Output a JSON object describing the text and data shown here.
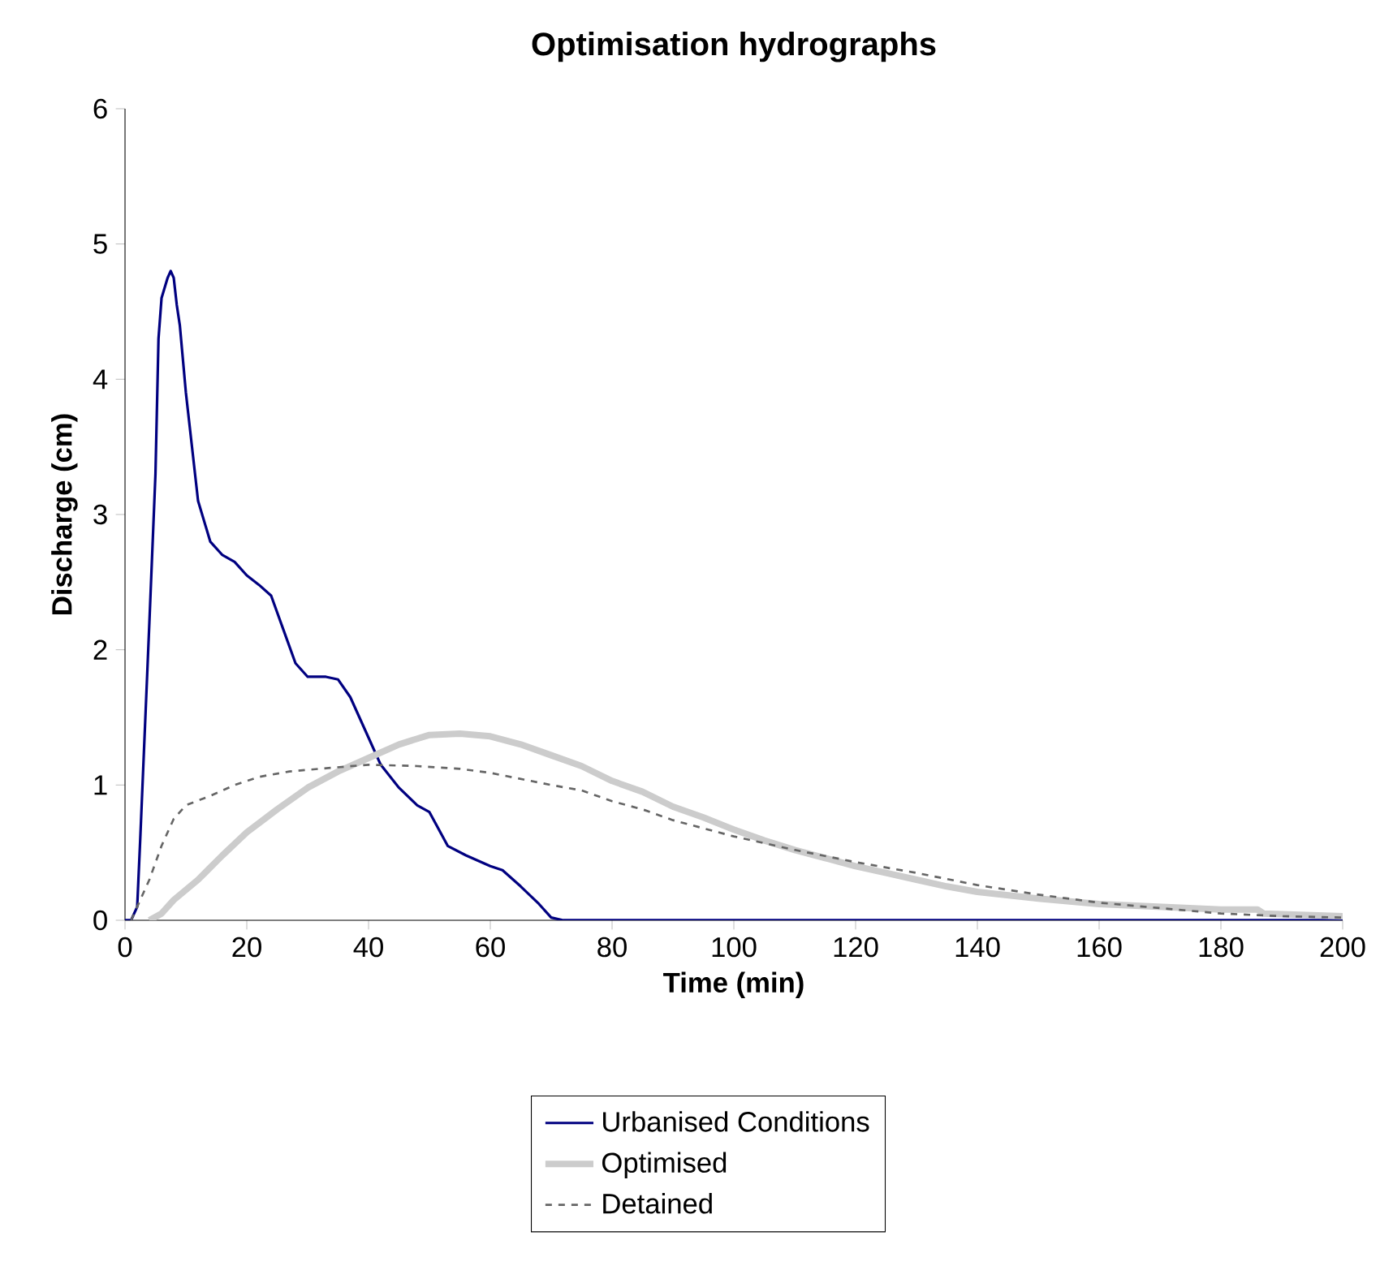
{
  "chart_data": {
    "type": "line",
    "title": "Optimisation hydrographs",
    "xlabel": "Time (min)",
    "ylabel": "Discharge (cm)",
    "xlim": [
      0,
      200
    ],
    "xticks": [
      0,
      20,
      40,
      60,
      80,
      100,
      120,
      140,
      160,
      180,
      200
    ],
    "ylim": [
      0,
      6
    ],
    "yticks": [
      0,
      1,
      2,
      3,
      4,
      5,
      6
    ],
    "grid": false,
    "legend": "bottom",
    "marker": "none",
    "series": [
      {
        "name": "Urbanised Conditions",
        "color": "#000080",
        "line_style": "solid",
        "x": [
          0,
          1,
          2,
          2.5,
          4,
          5,
          5.5,
          6,
          7,
          7.5,
          8,
          8.5,
          9,
          10,
          11,
          12,
          14,
          16,
          18,
          20,
          22,
          24,
          26,
          28,
          30,
          33,
          35,
          37,
          40,
          42,
          45,
          48,
          50,
          53,
          56,
          60,
          62,
          65,
          68,
          70,
          72,
          200
        ],
        "values": [
          0,
          0,
          0.1,
          0.6,
          2.2,
          3.3,
          4.3,
          4.6,
          4.75,
          4.8,
          4.75,
          4.55,
          4.4,
          3.9,
          3.5,
          3.1,
          2.8,
          2.7,
          2.65,
          2.55,
          2.48,
          2.4,
          2.15,
          1.9,
          1.8,
          1.8,
          1.78,
          1.65,
          1.35,
          1.15,
          0.98,
          0.85,
          0.8,
          0.55,
          0.48,
          0.4,
          0.37,
          0.25,
          0.12,
          0.02,
          0,
          0
        ]
      },
      {
        "name": "Optimised",
        "color": "#cccccc",
        "line_style": "solid",
        "x": [
          4,
          6,
          8,
          12,
          16,
          20,
          25,
          30,
          35,
          40,
          45,
          50,
          55,
          60,
          65,
          70,
          75,
          80,
          85,
          90,
          95,
          100,
          105,
          110,
          115,
          120,
          125,
          130,
          135,
          140,
          150,
          160,
          170,
          180,
          186,
          187,
          200
        ],
        "values": [
          0,
          0.05,
          0.15,
          0.3,
          0.48,
          0.65,
          0.82,
          0.98,
          1.1,
          1.2,
          1.3,
          1.37,
          1.38,
          1.36,
          1.3,
          1.22,
          1.14,
          1.03,
          0.95,
          0.84,
          0.76,
          0.67,
          0.59,
          0.52,
          0.46,
          0.4,
          0.35,
          0.3,
          0.25,
          0.21,
          0.16,
          0.12,
          0.1,
          0.08,
          0.08,
          0.05,
          0.03
        ]
      },
      {
        "name": "Detained",
        "color": "#666666",
        "line_style": "dashed",
        "x": [
          1,
          4,
          6,
          8,
          10,
          14,
          18,
          22,
          27,
          32,
          40,
          48,
          55,
          60,
          70,
          75,
          80,
          85,
          90,
          95,
          100,
          110,
          120,
          130,
          140,
          150,
          160,
          170,
          180,
          190,
          200
        ],
        "values": [
          0,
          0.3,
          0.55,
          0.75,
          0.85,
          0.92,
          1.0,
          1.06,
          1.1,
          1.12,
          1.15,
          1.14,
          1.12,
          1.09,
          1.0,
          0.96,
          0.88,
          0.82,
          0.74,
          0.68,
          0.62,
          0.52,
          0.43,
          0.35,
          0.26,
          0.19,
          0.13,
          0.09,
          0.05,
          0.03,
          0.02
        ]
      }
    ]
  }
}
